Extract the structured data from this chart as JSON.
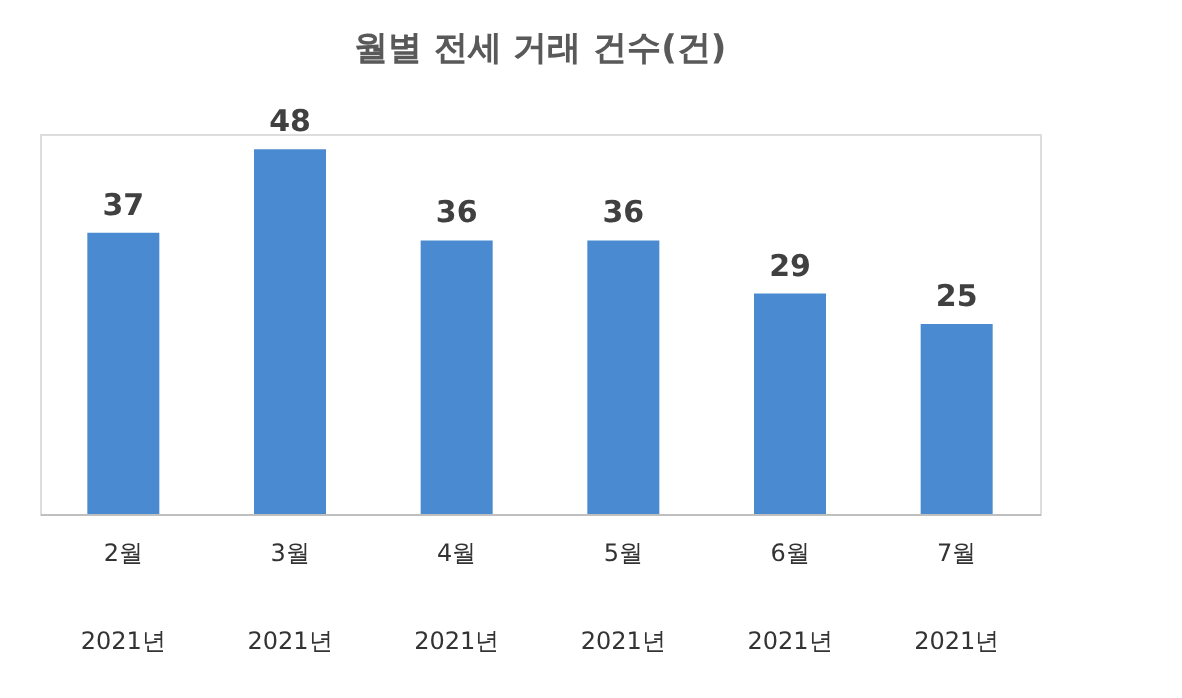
{
  "chart_data": {
    "type": "bar",
    "title": "월별 전세 거래 건수(건)",
    "categories": [
      "2월\n2021년",
      "3월\n2021년",
      "4월\n2021년",
      "5월\n2021년",
      "6월\n2021년",
      "7월\n2021년"
    ],
    "values": [
      37,
      48,
      36,
      36,
      29,
      25
    ],
    "color": "#4a8ad0",
    "data_labels": true,
    "grid": false
  }
}
